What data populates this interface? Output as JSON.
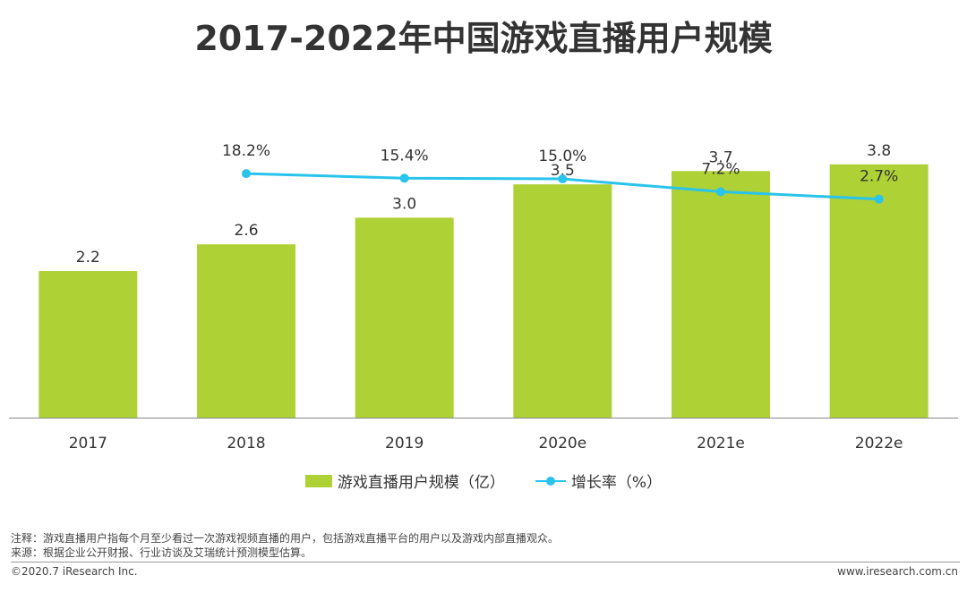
{
  "title": "2017-2022年中国游戏直播用户规模",
  "chart_data": {
    "type": "bar",
    "categories": [
      "2017",
      "2018",
      "2019",
      "2020e",
      "2021e",
      "2022e"
    ],
    "series": [
      {
        "name": "游戏直播用户规模（亿）",
        "type": "bar",
        "values": [
          2.2,
          2.6,
          3.0,
          3.5,
          3.7,
          3.8
        ],
        "labels": [
          "2.2",
          "2.6",
          "3.0",
          "3.5",
          "3.7",
          "3.8"
        ]
      },
      {
        "name": "增长率（%）",
        "type": "line",
        "values": [
          null,
          18.2,
          15.4,
          15.0,
          7.2,
          2.7
        ],
        "labels": [
          "",
          "18.2%",
          "15.4%",
          "15.0%",
          "7.2%",
          "2.7%"
        ]
      }
    ],
    "bar_ylim": [
      0,
      4.2
    ],
    "line_ylim": [
      -130,
      40
    ],
    "colors": {
      "bar": "#aed135",
      "line": "#29c3eb",
      "axis": "#888888",
      "text": "#333333"
    }
  },
  "legend": {
    "bar_label": "游戏直播用户规模（亿）",
    "line_label": "增长率（%）"
  },
  "notes": {
    "note": "注释：游戏直播用户指每个月至少看过一次游戏视频直播的用户，包括游戏直播平台的用户以及游戏内部直播观众。",
    "source": "来源：根据企业公开财报、行业访谈及艾瑞统计预测模型估算。"
  },
  "footer": {
    "copyright": "©2020.7 iResearch Inc.",
    "website": "www.iresearch.com.cn"
  }
}
